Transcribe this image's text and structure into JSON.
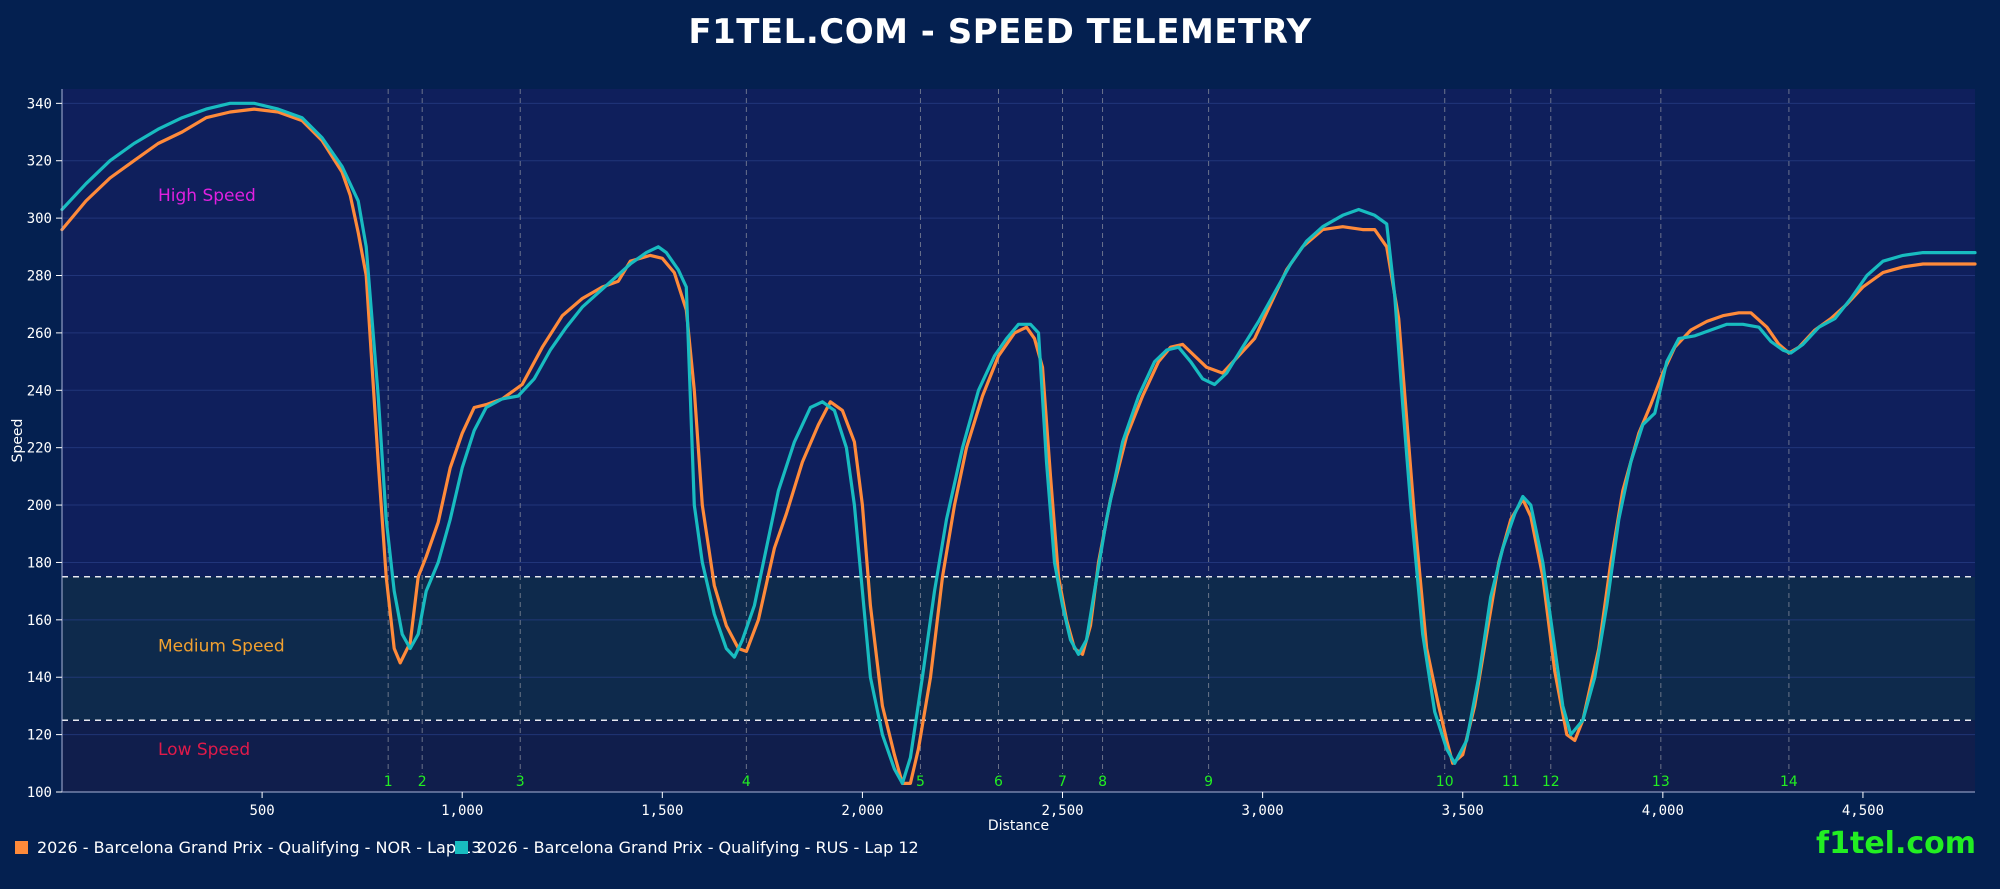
{
  "page": {
    "title": "F1TEL.COM - SPEED TELEMETRY",
    "watermark": "f1tel.com"
  },
  "colors": {
    "background": "#042050",
    "plot_bg": "#0f1f5c",
    "medium_band": "#0e2a4c",
    "low_band": "#101e4c",
    "high_label": "#e020e0",
    "medium_label": "#f0a030",
    "low_label": "#e01a4a",
    "corner_label": "#22ee22",
    "nor": "#ff8a3a",
    "rus": "#18bcc0"
  },
  "chart_data": {
    "type": "line",
    "title": "F1TEL.COM - SPEED TELEMETRY",
    "xlabel": "Distance",
    "ylabel": "Speed",
    "xlim": [
      0,
      4780
    ],
    "ylim": [
      100,
      345
    ],
    "xticks": [
      500,
      1000,
      1500,
      2000,
      2500,
      3000,
      3500,
      4000,
      4500
    ],
    "xtick_labels": [
      "500",
      "1,000",
      "1,500",
      "2,000",
      "2,500",
      "3,000",
      "3,500",
      "4,000",
      "4,500"
    ],
    "yticks": [
      100,
      120,
      140,
      160,
      180,
      200,
      220,
      240,
      260,
      280,
      300,
      320,
      340
    ],
    "grid": true,
    "legend_position": "bottom-left",
    "thresholds": [
      175,
      125
    ],
    "zones": [
      {
        "label": "High Speed",
        "y": 308
      },
      {
        "label": "Medium Speed",
        "y": 151
      },
      {
        "label": "Low Speed",
        "y": 115
      }
    ],
    "corners": [
      {
        "label": "1",
        "x": 815
      },
      {
        "label": "2",
        "x": 900
      },
      {
        "label": "3",
        "x": 1145
      },
      {
        "label": "4",
        "x": 1710
      },
      {
        "label": "5",
        "x": 2145
      },
      {
        "label": "6",
        "x": 2340
      },
      {
        "label": "7",
        "x": 2500
      },
      {
        "label": "8",
        "x": 2600
      },
      {
        "label": "9",
        "x": 2865
      },
      {
        "label": "10",
        "x": 3455
      },
      {
        "label": "11",
        "x": 3620
      },
      {
        "label": "12",
        "x": 3720
      },
      {
        "label": "13",
        "x": 3995
      },
      {
        "label": "14",
        "x": 4315
      }
    ],
    "series": [
      {
        "name": "2026 - Barcelona Grand Prix - Qualifying - NOR - Lap 13",
        "color": "#ff8a3a",
        "points": [
          [
            0,
            296
          ],
          [
            60,
            306
          ],
          [
            120,
            314
          ],
          [
            180,
            320
          ],
          [
            240,
            326
          ],
          [
            300,
            330
          ],
          [
            360,
            335
          ],
          [
            420,
            337
          ],
          [
            480,
            338
          ],
          [
            540,
            337
          ],
          [
            600,
            334
          ],
          [
            650,
            327
          ],
          [
            700,
            316
          ],
          [
            720,
            308
          ],
          [
            740,
            295
          ],
          [
            760,
            280
          ],
          [
            790,
            215
          ],
          [
            810,
            175
          ],
          [
            830,
            150
          ],
          [
            845,
            145
          ],
          [
            870,
            152
          ],
          [
            890,
            175
          ],
          [
            910,
            182
          ],
          [
            940,
            194
          ],
          [
            970,
            213
          ],
          [
            1000,
            225
          ],
          [
            1030,
            234
          ],
          [
            1060,
            235
          ],
          [
            1100,
            237
          ],
          [
            1150,
            242
          ],
          [
            1200,
            255
          ],
          [
            1250,
            266
          ],
          [
            1300,
            272
          ],
          [
            1350,
            276
          ],
          [
            1390,
            278
          ],
          [
            1420,
            285
          ],
          [
            1470,
            287
          ],
          [
            1500,
            286
          ],
          [
            1530,
            281
          ],
          [
            1560,
            268
          ],
          [
            1580,
            240
          ],
          [
            1600,
            200
          ],
          [
            1630,
            172
          ],
          [
            1660,
            158
          ],
          [
            1690,
            150
          ],
          [
            1710,
            149
          ],
          [
            1740,
            160
          ],
          [
            1780,
            185
          ],
          [
            1810,
            197
          ],
          [
            1850,
            215
          ],
          [
            1890,
            228
          ],
          [
            1920,
            236
          ],
          [
            1950,
            233
          ],
          [
            1980,
            222
          ],
          [
            2000,
            200
          ],
          [
            2020,
            165
          ],
          [
            2050,
            130
          ],
          [
            2080,
            113
          ],
          [
            2100,
            103
          ],
          [
            2120,
            103
          ],
          [
            2140,
            115
          ],
          [
            2170,
            140
          ],
          [
            2200,
            175
          ],
          [
            2230,
            200
          ],
          [
            2260,
            220
          ],
          [
            2300,
            238
          ],
          [
            2340,
            252
          ],
          [
            2380,
            260
          ],
          [
            2410,
            262
          ],
          [
            2430,
            258
          ],
          [
            2450,
            248
          ],
          [
            2470,
            210
          ],
          [
            2490,
            175
          ],
          [
            2510,
            160
          ],
          [
            2530,
            150
          ],
          [
            2550,
            148
          ],
          [
            2570,
            158
          ],
          [
            2590,
            180
          ],
          [
            2620,
            202
          ],
          [
            2660,
            224
          ],
          [
            2700,
            238
          ],
          [
            2740,
            250
          ],
          [
            2770,
            255
          ],
          [
            2800,
            256
          ],
          [
            2830,
            252
          ],
          [
            2860,
            248
          ],
          [
            2900,
            246
          ],
          [
            2940,
            252
          ],
          [
            2980,
            258
          ],
          [
            3020,
            270
          ],
          [
            3060,
            282
          ],
          [
            3100,
            290
          ],
          [
            3150,
            296
          ],
          [
            3200,
            297
          ],
          [
            3250,
            296
          ],
          [
            3280,
            296
          ],
          [
            3310,
            290
          ],
          [
            3340,
            265
          ],
          [
            3360,
            230
          ],
          [
            3380,
            195
          ],
          [
            3410,
            150
          ],
          [
            3440,
            130
          ],
          [
            3460,
            118
          ],
          [
            3475,
            110
          ],
          [
            3500,
            113
          ],
          [
            3530,
            130
          ],
          [
            3560,
            155
          ],
          [
            3590,
            180
          ],
          [
            3620,
            195
          ],
          [
            3650,
            202
          ],
          [
            3670,
            196
          ],
          [
            3700,
            175
          ],
          [
            3730,
            142
          ],
          [
            3760,
            120
          ],
          [
            3780,
            118
          ],
          [
            3800,
            125
          ],
          [
            3840,
            150
          ],
          [
            3870,
            180
          ],
          [
            3900,
            205
          ],
          [
            3940,
            225
          ],
          [
            3970,
            235
          ],
          [
            4000,
            246
          ],
          [
            4030,
            255
          ],
          [
            4070,
            261
          ],
          [
            4110,
            264
          ],
          [
            4150,
            266
          ],
          [
            4190,
            267
          ],
          [
            4220,
            267
          ],
          [
            4260,
            262
          ],
          [
            4290,
            256
          ],
          [
            4315,
            253
          ],
          [
            4340,
            255
          ],
          [
            4380,
            261
          ],
          [
            4420,
            265
          ],
          [
            4460,
            270
          ],
          [
            4500,
            276
          ],
          [
            4550,
            281
          ],
          [
            4600,
            283
          ],
          [
            4650,
            284
          ],
          [
            4780,
            284
          ]
        ]
      },
      {
        "name": "2026 - Barcelona Grand Prix - Qualifying - RUS - Lap 12",
        "color": "#18bcc0",
        "points": [
          [
            0,
            303
          ],
          [
            60,
            312
          ],
          [
            120,
            320
          ],
          [
            180,
            326
          ],
          [
            240,
            331
          ],
          [
            300,
            335
          ],
          [
            360,
            338
          ],
          [
            420,
            340
          ],
          [
            480,
            340
          ],
          [
            540,
            338
          ],
          [
            600,
            335
          ],
          [
            650,
            328
          ],
          [
            700,
            318
          ],
          [
            740,
            306
          ],
          [
            760,
            290
          ],
          [
            790,
            238
          ],
          [
            810,
            195
          ],
          [
            830,
            170
          ],
          [
            850,
            155
          ],
          [
            870,
            150
          ],
          [
            890,
            155
          ],
          [
            910,
            170
          ],
          [
            940,
            180
          ],
          [
            970,
            195
          ],
          [
            1000,
            213
          ],
          [
            1030,
            226
          ],
          [
            1060,
            234
          ],
          [
            1100,
            237
          ],
          [
            1140,
            238
          ],
          [
            1180,
            244
          ],
          [
            1220,
            254
          ],
          [
            1260,
            262
          ],
          [
            1300,
            269
          ],
          [
            1340,
            274
          ],
          [
            1380,
            279
          ],
          [
            1420,
            284
          ],
          [
            1460,
            288
          ],
          [
            1490,
            290
          ],
          [
            1510,
            288
          ],
          [
            1540,
            282
          ],
          [
            1560,
            276
          ],
          [
            1580,
            200
          ],
          [
            1600,
            180
          ],
          [
            1630,
            162
          ],
          [
            1660,
            150
          ],
          [
            1680,
            147
          ],
          [
            1700,
            153
          ],
          [
            1730,
            165
          ],
          [
            1760,
            185
          ],
          [
            1790,
            205
          ],
          [
            1830,
            222
          ],
          [
            1870,
            234
          ],
          [
            1900,
            236
          ],
          [
            1930,
            233
          ],
          [
            1960,
            220
          ],
          [
            1980,
            200
          ],
          [
            2000,
            170
          ],
          [
            2020,
            140
          ],
          [
            2050,
            120
          ],
          [
            2080,
            108
          ],
          [
            2100,
            103
          ],
          [
            2120,
            112
          ],
          [
            2150,
            140
          ],
          [
            2180,
            170
          ],
          [
            2210,
            195
          ],
          [
            2250,
            220
          ],
          [
            2290,
            240
          ],
          [
            2330,
            252
          ],
          [
            2360,
            258
          ],
          [
            2390,
            263
          ],
          [
            2420,
            263
          ],
          [
            2440,
            260
          ],
          [
            2460,
            215
          ],
          [
            2480,
            180
          ],
          [
            2500,
            165
          ],
          [
            2520,
            153
          ],
          [
            2540,
            148
          ],
          [
            2560,
            153
          ],
          [
            2580,
            170
          ],
          [
            2610,
            195
          ],
          [
            2650,
            222
          ],
          [
            2690,
            238
          ],
          [
            2730,
            250
          ],
          [
            2760,
            254
          ],
          [
            2790,
            255
          ],
          [
            2820,
            250
          ],
          [
            2850,
            244
          ],
          [
            2880,
            242
          ],
          [
            2910,
            246
          ],
          [
            2950,
            255
          ],
          [
            2990,
            264
          ],
          [
            3030,
            274
          ],
          [
            3070,
            284
          ],
          [
            3110,
            292
          ],
          [
            3150,
            297
          ],
          [
            3200,
            301
          ],
          [
            3240,
            303
          ],
          [
            3280,
            301
          ],
          [
            3310,
            298
          ],
          [
            3330,
            273
          ],
          [
            3350,
            235
          ],
          [
            3370,
            200
          ],
          [
            3400,
            155
          ],
          [
            3430,
            128
          ],
          [
            3460,
            115
          ],
          [
            3480,
            110
          ],
          [
            3510,
            118
          ],
          [
            3540,
            140
          ],
          [
            3570,
            168
          ],
          [
            3600,
            185
          ],
          [
            3630,
            197
          ],
          [
            3650,
            203
          ],
          [
            3670,
            200
          ],
          [
            3700,
            180
          ],
          [
            3730,
            150
          ],
          [
            3750,
            130
          ],
          [
            3770,
            120
          ],
          [
            3800,
            125
          ],
          [
            3830,
            140
          ],
          [
            3860,
            165
          ],
          [
            3890,
            195
          ],
          [
            3920,
            215
          ],
          [
            3950,
            228
          ],
          [
            3980,
            232
          ],
          [
            4010,
            250
          ],
          [
            4040,
            258
          ],
          [
            4080,
            259
          ],
          [
            4120,
            261
          ],
          [
            4160,
            263
          ],
          [
            4200,
            263
          ],
          [
            4240,
            262
          ],
          [
            4270,
            257
          ],
          [
            4300,
            254
          ],
          [
            4320,
            253
          ],
          [
            4350,
            256
          ],
          [
            4390,
            262
          ],
          [
            4430,
            265
          ],
          [
            4470,
            272
          ],
          [
            4510,
            280
          ],
          [
            4550,
            285
          ],
          [
            4600,
            287
          ],
          [
            4650,
            288
          ],
          [
            4780,
            288
          ]
        ]
      }
    ]
  }
}
